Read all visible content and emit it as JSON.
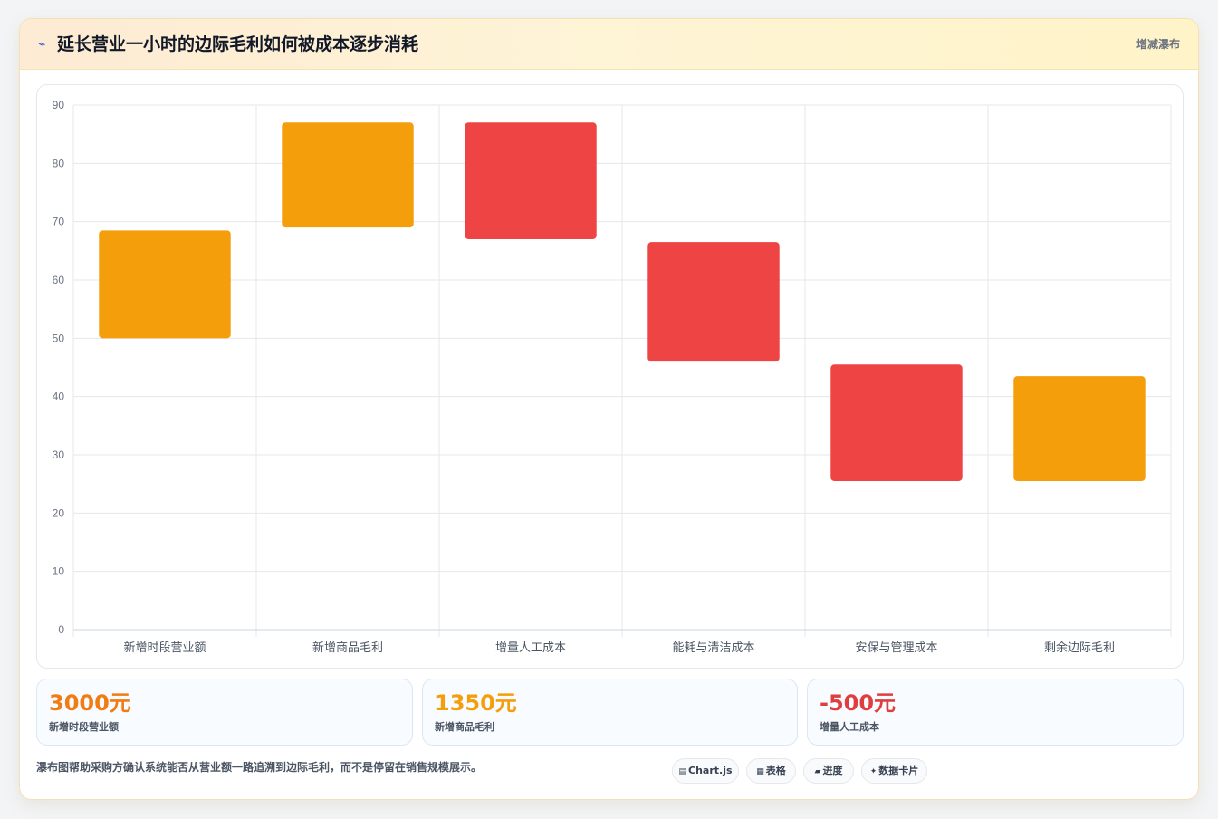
{
  "header": {
    "icon": "lightning-icon",
    "title": "延长营业一小时的边际毛利如何被成本逐步消耗",
    "tag": "增减瀑布"
  },
  "colors": {
    "increase": "#f59e0b",
    "decrease": "#ef4444",
    "total": "#f59e0b",
    "grid": "#e5e7eb",
    "tick": "#6b7280"
  },
  "chart_data": {
    "type": "bar",
    "subtype": "floating-waterfall",
    "title": "",
    "xlabel": "",
    "ylabel": "",
    "ylim": [
      0,
      90
    ],
    "yticks": [
      0,
      10,
      20,
      30,
      40,
      50,
      60,
      70,
      80,
      90
    ],
    "grid": true,
    "legend": "none",
    "categories": [
      "新增时段营业额",
      "新增商品毛利",
      "增量人工成本",
      "能耗与清洁成本",
      "安保与管理成本",
      "剩余边际毛利"
    ],
    "series": [
      {
        "ranges": [
          [
            50,
            68.5
          ],
          [
            69,
            87
          ],
          [
            67,
            87
          ],
          [
            46,
            66.5
          ],
          [
            25.5,
            45.5
          ],
          [
            25.5,
            43.5
          ]
        ],
        "kinds": [
          "increase",
          "increase",
          "decrease",
          "decrease",
          "decrease",
          "total"
        ]
      }
    ]
  },
  "stats": [
    {
      "value": "3000元",
      "label": "新增时段营业额",
      "color": "#f07c12"
    },
    {
      "value": "1350元",
      "label": "新增商品毛利",
      "color": "#f59e0b"
    },
    {
      "value": "-500元",
      "label": "增量人工成本",
      "color": "#e03e3e"
    }
  ],
  "footnote": "瀑布图帮助采购方确认系统能否从营业额一路追溯到边际毛利，而不是停留在销售规模展示。",
  "pills": [
    {
      "icon": "chart-icon",
      "glyph": "▤",
      "label": "Chart.js"
    },
    {
      "icon": "table-icon",
      "glyph": "▦",
      "label": "表格"
    },
    {
      "icon": "progress-icon",
      "glyph": "▰",
      "label": "进度"
    },
    {
      "icon": "card-icon",
      "glyph": "✦",
      "label": "数据卡片"
    }
  ]
}
